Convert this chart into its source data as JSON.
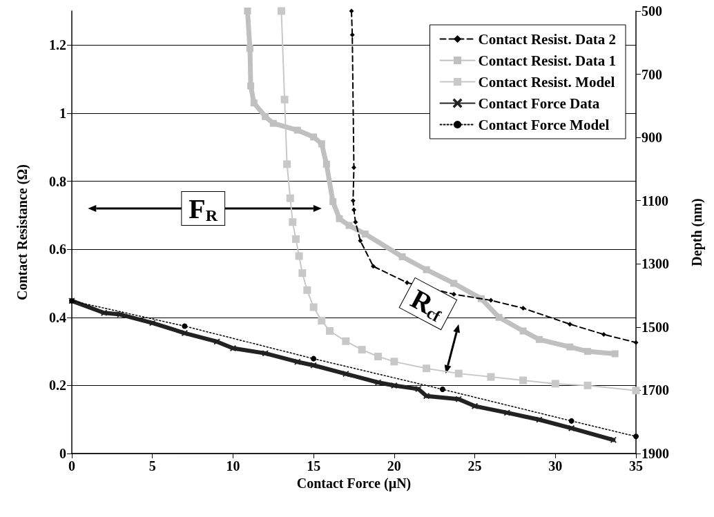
{
  "chart_data": {
    "type": "line",
    "xlabel": "Contact Force (µN)",
    "ylabel": "Contact Resistance (Ω)",
    "y2label": "Depth (nm)",
    "xlim": [
      0,
      35
    ],
    "xticks": [
      0,
      5,
      10,
      15,
      20,
      25,
      30,
      35
    ],
    "ylim": [
      0,
      1.3
    ],
    "yticks": [
      0,
      0.2,
      0.4,
      0.6,
      0.8,
      1,
      1.2
    ],
    "y2lim": [
      1900,
      500
    ],
    "y2ticks": [
      500,
      700,
      900,
      1100,
      1300,
      1500,
      1700,
      1900
    ],
    "grid": "y",
    "legend": "top right",
    "annotations": [
      "F$_{R}$",
      "R$_{cf}$"
    ],
    "series": [
      {
        "name": "Contact Resist. Data 2",
        "color": "#000000",
        "line_style": "dashed",
        "marker": "diamond",
        "x": [
          17.35,
          17.4,
          17.5,
          17.45,
          17.5,
          17.6,
          17.9,
          18.7,
          20.8,
          23.7,
          26,
          28,
          30.9,
          33,
          35
        ],
        "values": [
          1.3,
          1.23,
          0.84,
          0.743,
          0.716,
          0.68,
          0.625,
          0.55,
          0.502,
          0.468,
          0.45,
          0.427,
          0.38,
          0.35,
          0.326
        ]
      },
      {
        "name": "Contact Resist. Data 1",
        "color": "#c0c0c0",
        "line_style": "solid",
        "marker": "square",
        "x": [
          10.9,
          11.05,
          11.1,
          11.3,
          12,
          12.5,
          14,
          15,
          15.5,
          15.8,
          16.2,
          16.6,
          17.2,
          18.2,
          20.5,
          22,
          23.7,
          25.4,
          26.5,
          28,
          29,
          30.9,
          32,
          33.7
        ],
        "values": [
          1.3,
          1.19,
          1.08,
          1.03,
          0.99,
          0.97,
          0.95,
          0.93,
          0.91,
          0.85,
          0.74,
          0.69,
          0.67,
          0.645,
          0.578,
          0.54,
          0.5,
          0.455,
          0.4,
          0.36,
          0.335,
          0.313,
          0.3,
          0.293
        ]
      },
      {
        "name": "Contact Resist. Model",
        "color": "#c8c8c8",
        "line_style": "solid",
        "marker": "square",
        "x": [
          13.0,
          13.2,
          13.35,
          13.55,
          13.7,
          13.9,
          14.1,
          14.3,
          14.6,
          15,
          15.5,
          16,
          17,
          18,
          19,
          20,
          22,
          24,
          26,
          28,
          30,
          32,
          35
        ],
        "values": [
          1.3,
          1.04,
          0.85,
          0.75,
          0.68,
          0.63,
          0.58,
          0.53,
          0.48,
          0.43,
          0.39,
          0.36,
          0.33,
          0.305,
          0.285,
          0.27,
          0.25,
          0.235,
          0.225,
          0.215,
          0.205,
          0.2,
          0.185
        ]
      },
      {
        "name": "Contact Force Data",
        "color": "#222222",
        "line_style": "solid",
        "marker": "cross",
        "axis": "y2",
        "x": [
          0,
          2,
          3,
          5,
          7,
          9,
          10,
          12,
          14,
          15,
          17,
          19,
          20,
          21.5,
          22,
          24,
          25,
          27,
          29,
          31,
          33.6
        ],
        "values": [
          1417,
          1455,
          1460,
          1487,
          1519,
          1546,
          1567,
          1583,
          1610,
          1621,
          1648,
          1675,
          1685,
          1696,
          1718,
          1728,
          1750,
          1771,
          1793,
          1820,
          1857
        ]
      },
      {
        "name": "Contact Force Model",
        "color": "#000000",
        "line_style": "dotted",
        "marker": "circle",
        "axis": "y2",
        "x": [
          0,
          7,
          15,
          23,
          31,
          35
        ],
        "values": [
          1417,
          1497,
          1600,
          1697,
          1797,
          1846
        ]
      }
    ]
  }
}
